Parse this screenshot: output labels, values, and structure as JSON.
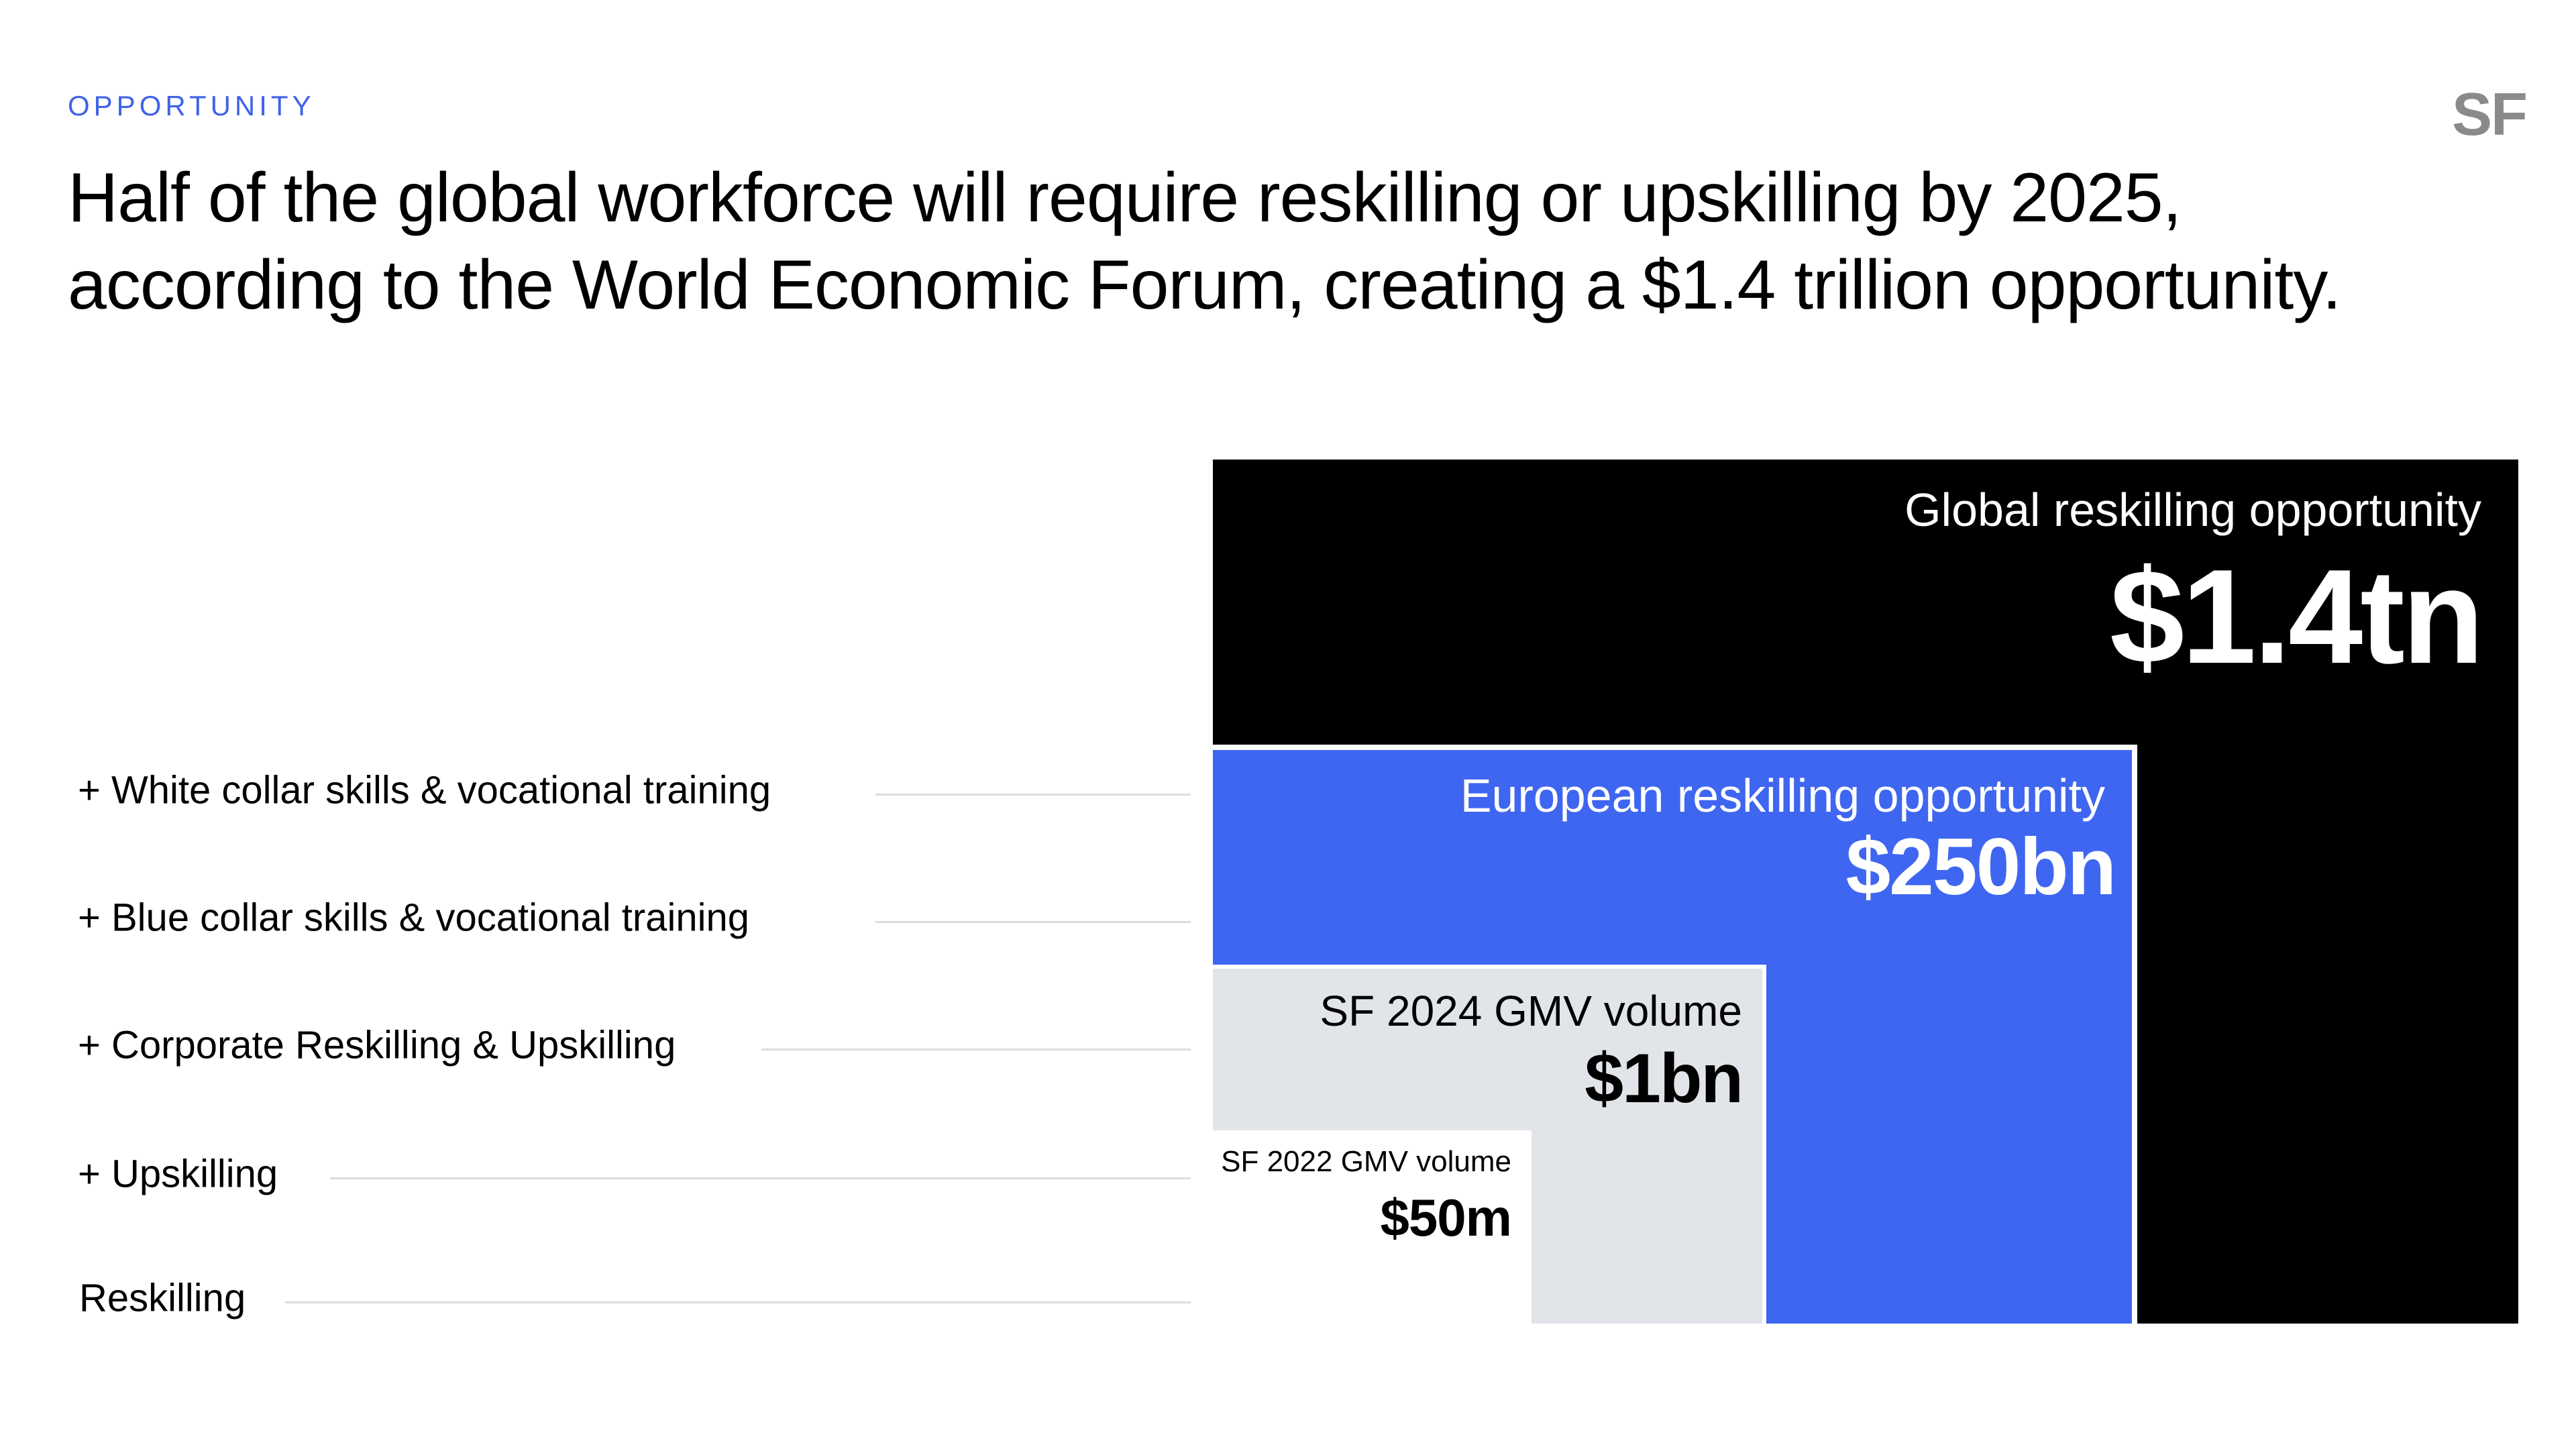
{
  "header": {
    "section": "OPPORTUNITY",
    "logo": "SF",
    "headline_line1": "Half of the global workforce will require reskilling or upskilling by 2025,",
    "headline_line2": "according to the World Economic Forum, creating a $1.4 trillion opportunity."
  },
  "chart_data": {
    "type": "nested-area",
    "rows": [
      {
        "label": "+ White collar skills & vocational training"
      },
      {
        "label": "+ Blue collar skills &  vocational training"
      },
      {
        "label": "+ Corporate Reskilling & Upskilling"
      },
      {
        "label": "+ Upskilling"
      },
      {
        "label": "Reskilling"
      }
    ],
    "boxes": [
      {
        "label": "Global reskilling opportunity",
        "value_label": "$1.4tn",
        "color": "#000000"
      },
      {
        "label": "European reskilling opportunity",
        "value_label": "$250bn",
        "color": "#3f66f0"
      },
      {
        "label": "SF 2024 GMV volume",
        "value_label": "$1bn",
        "color": "#e1e4e8"
      },
      {
        "label": "SF 2022 GMV volume",
        "value_label": "$50m",
        "color": "#ffffff"
      }
    ]
  }
}
